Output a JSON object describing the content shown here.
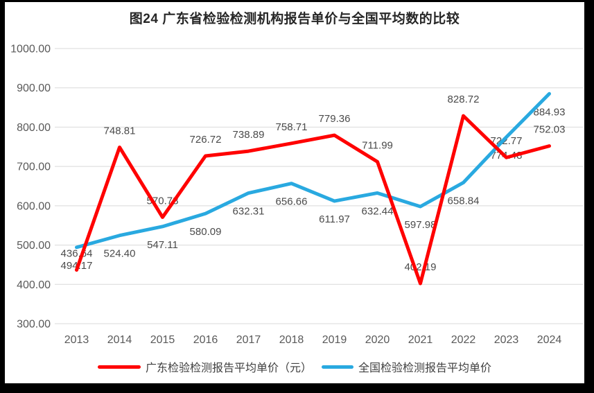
{
  "frame": {
    "border_color": "#000000",
    "background": "#ffffff"
  },
  "chart_data": {
    "type": "line",
    "title": "图24  广东省检验检测机构报告单价与全国平均数的比较",
    "categories": [
      "2013",
      "2014",
      "2015",
      "2016",
      "2017",
      "2018",
      "2019",
      "2020",
      "2021",
      "2022",
      "2023",
      "2024"
    ],
    "series": [
      {
        "name": "广东检验检测报告平均单价（元）",
        "color": "#ff0000",
        "values": [
          436.64,
          748.81,
          570.78,
          726.72,
          738.89,
          758.71,
          779.36,
          711.99,
          402.19,
          828.72,
          722.77,
          752.03
        ]
      },
      {
        "name": "全国检验检测报告平均单价",
        "color": "#29a9e0",
        "values": [
          494.17,
          524.4,
          547.11,
          580.09,
          632.31,
          656.66,
          611.97,
          632.44,
          597.98,
          658.84,
          774.48,
          884.93
        ]
      }
    ],
    "y_axis": {
      "min": 300,
      "max": 1000,
      "step": 100,
      "tick_labels": [
        "1000.00",
        "900.00",
        "800.00",
        "700.00",
        "600.00",
        "500.00",
        "400.00",
        "300.00"
      ]
    },
    "x_axis": {
      "tick_labels": [
        "2013",
        "2014",
        "2015",
        "2016",
        "2017",
        "2018",
        "2019",
        "2020",
        "2021",
        "2022",
        "2023",
        "2024"
      ]
    },
    "grid": true,
    "legend_position": "bottom",
    "colors": {
      "gridline": "#d9d9d9",
      "axis_text": "#595959",
      "data_label_text": "#4a4a4a"
    }
  }
}
